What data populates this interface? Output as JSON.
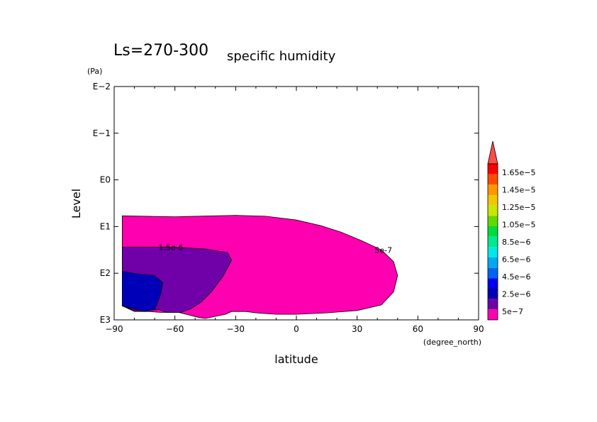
{
  "chart_data": {
    "type": "contour",
    "title": "Ls=270-300",
    "subtitle": "specific humidity",
    "xlabel": "latitude",
    "x_units": "(degree_north)",
    "ylabel": "Level",
    "y_units": "(Pa)",
    "xlim": [
      -90,
      90
    ],
    "ylim_log10": [
      -2,
      3
    ],
    "y_scale": "log",
    "x_ticks": [
      -90,
      -60,
      -30,
      0,
      30,
      60,
      90
    ],
    "x_tick_labels": [
      "−90",
      "−60",
      "−30",
      "0",
      "30",
      "60",
      "90"
    ],
    "y_ticks_log10": [
      -2,
      -1,
      0,
      1,
      2,
      3
    ],
    "y_tick_labels": [
      "E−2",
      "E−1",
      "E0",
      "E1",
      "E2",
      "E3"
    ],
    "contour_labels": [
      {
        "text": "1.5e-6",
        "lat": -62,
        "log10_level": 1.44
      },
      {
        "text": "5e-7",
        "lat": 43,
        "log10_level": 1.5
      }
    ],
    "regions": [
      {
        "name": "5e-7",
        "color": "#ff00b0",
        "points": [
          [
            -86,
            0.77
          ],
          [
            -60,
            0.79
          ],
          [
            -30,
            0.76
          ],
          [
            -15,
            0.78
          ],
          [
            0,
            0.86
          ],
          [
            12,
            0.98
          ],
          [
            22,
            1.12
          ],
          [
            32,
            1.3
          ],
          [
            42,
            1.5
          ],
          [
            48,
            1.75
          ],
          [
            50,
            2.05
          ],
          [
            48,
            2.4
          ],
          [
            42,
            2.68
          ],
          [
            30,
            2.8
          ],
          [
            15,
            2.85
          ],
          [
            0,
            2.88
          ],
          [
            -10,
            2.88
          ],
          [
            -20,
            2.85
          ],
          [
            -25,
            2.82
          ],
          [
            -32,
            2.82
          ],
          [
            -35,
            2.88
          ],
          [
            -45,
            2.97
          ],
          [
            -48,
            2.95
          ],
          [
            -58,
            2.84
          ],
          [
            -67,
            2.84
          ],
          [
            -73,
            2.82
          ],
          [
            -80,
            2.82
          ],
          [
            -86,
            2.7
          ]
        ]
      },
      {
        "name": "1.5e-6",
        "color": "#7000a8",
        "points": [
          [
            -86,
            1.44
          ],
          [
            -75,
            1.44
          ],
          [
            -62,
            1.44
          ],
          [
            -45,
            1.48
          ],
          [
            -34,
            1.56
          ],
          [
            -32,
            1.72
          ],
          [
            -36,
            2.05
          ],
          [
            -42,
            2.4
          ],
          [
            -47,
            2.62
          ],
          [
            -52,
            2.76
          ],
          [
            -57,
            2.84
          ],
          [
            -64,
            2.84
          ],
          [
            -68,
            2.78
          ],
          [
            -74,
            2.8
          ],
          [
            -80,
            2.8
          ],
          [
            -86,
            2.7
          ]
        ]
      },
      {
        "name": "2.5e-6",
        "color": "#0000b8",
        "points": [
          [
            -86,
            1.96
          ],
          [
            -78,
            2.02
          ],
          [
            -70,
            2.05
          ],
          [
            -66,
            2.2
          ],
          [
            -67,
            2.45
          ],
          [
            -70,
            2.78
          ],
          [
            -75,
            2.82
          ],
          [
            -86,
            2.7
          ]
        ]
      }
    ],
    "missing_data_note": "",
    "colorbar": {
      "labels": [
        "1.65e−5",
        "1.45e−5",
        "1.25e−5",
        "1.05e−5",
        "8.5e−6",
        "6.5e−6",
        "4.5e−6",
        "2.5e−6",
        "5e−7"
      ],
      "colors": [
        "#ff0000",
        "#ff4c00",
        "#ff9800",
        "#f0c800",
        "#c8e800",
        "#64d800",
        "#00dc3c",
        "#00e890",
        "#00e8e8",
        "#00a8f0",
        "#0064f0",
        "#0000f0",
        "#0000b0",
        "#7000a8",
        "#ff00b0"
      ],
      "overflow_color": "#ff4c4c"
    }
  }
}
